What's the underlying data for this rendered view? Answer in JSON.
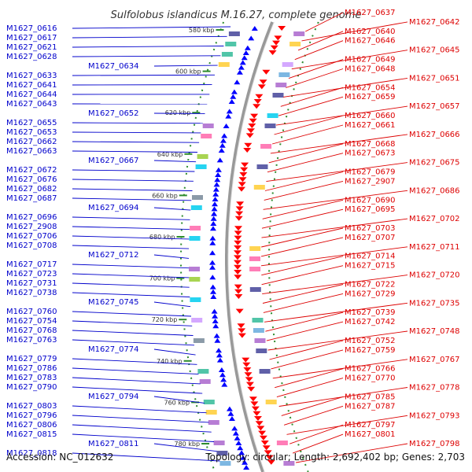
{
  "title": "Sulfolobus islandicus M.16.27, complete genome",
  "accession": "Accession: NC_012632",
  "topology": "Topology: circular; Length: 2,692,402 bp; Genes: 2,703",
  "colors": {
    "left_strand": "#0000cc",
    "right_strand": "#dd0000",
    "backbone": "#999999",
    "tick": "#2e8b2e"
  },
  "ticks": [
    "580 kbp",
    "600 kbp",
    "620 kbp",
    "640 kbp",
    "660 kbp",
    "680 kbp",
    "700 kbp",
    "720 kbp",
    "740 kbp",
    "760 kbp",
    "780 kbp"
  ],
  "left_genes": [
    "M1627_0616",
    "M1627_0617",
    "M1627_0621",
    "M1627_0628",
    "M1627_0634",
    "M1627_0633",
    "M1627_0641",
    "M1627_0644",
    "M1627_0643",
    "M1627_0652",
    "M1627_0655",
    "M1627_0653",
    "M1627_0662",
    "M1627_0663",
    "M1627_0667",
    "M1627_0672",
    "M1627_0676",
    "M1627_0682",
    "M1627_0687",
    "M1627_0694",
    "M1627_0696",
    "M1627_2908",
    "M1627_0706",
    "M1627_0708",
    "M1627_0712",
    "M1627_0717",
    "M1627_0723",
    "M1627_0731",
    "M1627_0738",
    "M1627_0745",
    "M1627_0760",
    "M1627_0754",
    "M1627_0768",
    "M1627_0763",
    "M1627_0774",
    "M1627_0779",
    "M1627_0786",
    "M1627_0783",
    "M1627_0790",
    "M1627_0794",
    "M1627_0803",
    "M1627_0796",
    "M1627_0806",
    "M1627_0815",
    "M1627_0811",
    "M1627_0818"
  ],
  "right_genes": [
    "M1627_0637",
    "M1627_0642",
    "M1627_0640",
    "M1627_0646",
    "M1627_0645",
    "M1627_0649",
    "M1627_0648",
    "M1627_0651",
    "M1627_0654",
    "M1627_0659",
    "M1627_0657",
    "M1627_0660",
    "M1627_0661",
    "M1627_0666",
    "M1627_0668",
    "M1627_0673",
    "M1627_0675",
    "M1627_0679",
    "M1627_2907",
    "M1627_0686",
    "M1627_0690",
    "M1627_0695",
    "M1627_0702",
    "M1627_0703",
    "M1627_0707",
    "M1627_0711",
    "M1627_0714",
    "M1627_0715",
    "M1627_0720",
    "M1627_0722",
    "M1627_0729",
    "M1627_0735",
    "M1627_0739",
    "M1627_0742",
    "M1627_0748",
    "M1627_0752",
    "M1627_0759",
    "M1627_0767",
    "M1627_0766",
    "M1627_0770",
    "M1627_0778",
    "M1627_0785",
    "M1627_0787",
    "M1627_0793",
    "M1627_0797",
    "M1627_0801",
    "M1627_0798"
  ]
}
